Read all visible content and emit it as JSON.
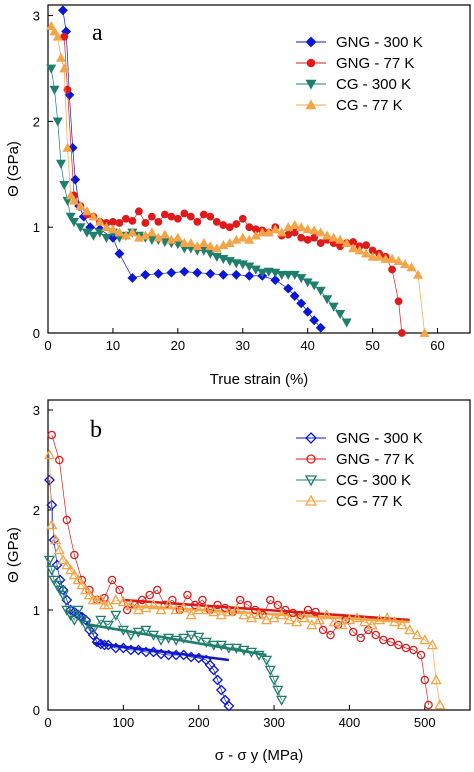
{
  "chart_data": [
    {
      "type": "scatter",
      "panel_label": "a",
      "xlabel": "True strain (%)",
      "ylabel": "Θ (GPa)",
      "xlim": [
        0,
        65
      ],
      "ylim": [
        0,
        3.1
      ],
      "xticks": [
        "0",
        "10",
        "20",
        "30",
        "40",
        "50",
        "60"
      ],
      "yticks": [
        "0",
        "1",
        "2",
        "3"
      ],
      "legend_position": "top-right",
      "series": [
        {
          "name": "GNG - 300 K",
          "color": "#0a16d8",
          "marker": "diamond",
          "filled": true,
          "x": [
            2.3,
            2.8,
            3.3,
            3.8,
            4.2,
            4.8,
            5.5,
            6.5,
            8,
            10,
            11,
            13,
            15,
            17,
            19,
            21,
            23,
            25,
            27,
            29,
            31,
            33,
            35,
            37,
            38,
            39,
            40,
            41,
            42
          ],
          "y": [
            3.05,
            2.85,
            2.25,
            1.75,
            1.45,
            1.2,
            1.1,
            1.0,
            0.98,
            0.9,
            0.75,
            0.52,
            0.55,
            0.56,
            0.57,
            0.58,
            0.57,
            0.56,
            0.55,
            0.55,
            0.54,
            0.54,
            0.5,
            0.42,
            0.35,
            0.28,
            0.2,
            0.12,
            0.05
          ]
        },
        {
          "name": "GNG - 77 K",
          "color": "#e01a1a",
          "marker": "circle",
          "filled": true,
          "x": [
            2.5,
            3,
            4,
            5,
            6,
            7,
            8,
            9,
            10,
            11,
            12,
            13,
            14,
            15,
            16,
            17,
            18,
            19,
            20,
            21,
            22,
            23,
            24,
            25,
            26,
            27,
            28,
            29,
            30,
            31,
            32,
            33,
            34,
            35,
            36,
            37,
            38,
            39,
            40,
            41,
            42,
            43,
            44,
            45,
            46,
            47,
            48,
            49,
            50,
            51,
            52,
            53,
            54,
            54.5
          ],
          "y": [
            2.8,
            2.3,
            1.3,
            1.2,
            1.12,
            1.1,
            1.05,
            1.04,
            1.05,
            1.04,
            1.08,
            1.06,
            1.15,
            1.04,
            1.1,
            1.05,
            1.12,
            1.1,
            1.08,
            1.13,
            1.1,
            1.05,
            1.12,
            1.1,
            1.05,
            1.02,
            1.0,
            1.03,
            1.08,
            1.0,
            0.98,
            0.97,
            0.95,
            1.0,
            0.92,
            0.93,
            0.95,
            0.9,
            0.88,
            0.9,
            0.85,
            0.88,
            0.85,
            0.82,
            0.85,
            0.86,
            0.82,
            0.83,
            0.78,
            0.75,
            0.72,
            0.6,
            0.3,
            0.0
          ]
        },
        {
          "name": "CG - 300 K",
          "color": "#1f7f6c",
          "marker": "triangle-down",
          "filled": true,
          "x": [
            0.5,
            1,
            1.5,
            2,
            2.5,
            3,
            3.5,
            4,
            5,
            6,
            7,
            8,
            9,
            10,
            11,
            12,
            13,
            14,
            15,
            16,
            17,
            18,
            19,
            20,
            21,
            22,
            23,
            24,
            25,
            26,
            27,
            28,
            29,
            30,
            31,
            32,
            33,
            34,
            35,
            36,
            37,
            38,
            39,
            40,
            41,
            42,
            43,
            44,
            45,
            46
          ],
          "y": [
            2.5,
            2.3,
            2.0,
            1.6,
            1.4,
            1.25,
            1.1,
            1.05,
            1.0,
            0.95,
            0.92,
            0.95,
            0.9,
            0.95,
            0.9,
            0.92,
            0.95,
            0.92,
            0.9,
            0.88,
            0.88,
            0.86,
            0.85,
            0.84,
            0.8,
            0.8,
            0.78,
            0.78,
            0.75,
            0.72,
            0.7,
            0.68,
            0.66,
            0.65,
            0.63,
            0.6,
            0.57,
            0.58,
            0.57,
            0.55,
            0.55,
            0.55,
            0.52,
            0.48,
            0.45,
            0.4,
            0.32,
            0.25,
            0.18,
            0.1
          ]
        },
        {
          "name": "CG - 77 K",
          "color": "#f5a448",
          "marker": "triangle-up",
          "filled": true,
          "x": [
            0.5,
            1,
            1.5,
            2,
            2.5,
            3,
            3.5,
            4,
            5,
            6,
            7,
            8,
            9,
            10,
            11,
            12,
            13,
            14,
            15,
            16,
            17,
            18,
            19,
            20,
            21,
            22,
            23,
            24,
            25,
            26,
            27,
            28,
            29,
            30,
            31,
            32,
            33,
            34,
            35,
            36,
            37,
            38,
            39,
            40,
            41,
            42,
            43,
            44,
            45,
            46,
            47,
            48,
            49,
            50,
            51,
            52,
            53,
            54,
            55,
            56,
            57,
            58
          ],
          "y": [
            2.9,
            2.85,
            2.8,
            2.6,
            2.5,
            1.75,
            1.3,
            1.25,
            1.2,
            1.15,
            1.1,
            1.05,
            1.0,
            0.98,
            0.95,
            0.92,
            0.95,
            0.9,
            0.92,
            0.95,
            0.9,
            0.93,
            0.88,
            0.9,
            0.85,
            0.85,
            0.82,
            0.85,
            0.82,
            0.8,
            0.83,
            0.85,
            0.88,
            0.9,
            0.88,
            0.92,
            0.95,
            0.95,
            0.98,
            0.95,
            1.0,
            1.02,
            1.0,
            0.98,
            0.97,
            0.95,
            0.92,
            0.9,
            0.88,
            0.85,
            0.8,
            0.78,
            0.75,
            0.72,
            0.72,
            0.7,
            0.7,
            0.68,
            0.65,
            0.62,
            0.55,
            0.0
          ]
        }
      ]
    },
    {
      "type": "scatter",
      "panel_label": "b",
      "xlabel": "σ - σ y (MPa)",
      "ylabel": "Θ (GPa)",
      "xlim": [
        0,
        560
      ],
      "ylim": [
        0,
        3.1
      ],
      "xticks": [
        "0",
        "100",
        "200",
        "300",
        "400",
        "500"
      ],
      "yticks": [
        "0",
        "1",
        "2",
        "3"
      ],
      "legend_position": "top-right",
      "series": [
        {
          "name": "GNG - 300 K",
          "color": "#0a16d8",
          "marker": "diamond",
          "filled": false,
          "x": [
            2,
            5,
            8,
            12,
            16,
            20,
            25,
            30,
            35,
            40,
            45,
            50,
            55,
            60,
            65,
            70,
            75,
            80,
            90,
            100,
            110,
            120,
            130,
            140,
            150,
            160,
            170,
            180,
            190,
            200,
            210,
            215,
            220,
            225,
            230,
            235,
            240
          ],
          "y": [
            2.3,
            2.05,
            1.7,
            1.45,
            1.3,
            1.2,
            1.1,
            1.0,
            0.98,
            0.95,
            0.93,
            0.9,
            0.8,
            0.75,
            0.68,
            0.66,
            0.65,
            0.65,
            0.62,
            0.62,
            0.6,
            0.6,
            0.58,
            0.58,
            0.56,
            0.55,
            0.55,
            0.55,
            0.53,
            0.52,
            0.5,
            0.45,
            0.4,
            0.3,
            0.2,
            0.1,
            0.04
          ]
        },
        {
          "name": "GNG - 77 K",
          "color": "#e01a1a",
          "marker": "circle",
          "filled": false,
          "x": [
            5,
            15,
            25,
            35,
            45,
            55,
            65,
            75,
            85,
            95,
            105,
            115,
            125,
            135,
            145,
            155,
            165,
            175,
            185,
            195,
            205,
            215,
            225,
            235,
            245,
            255,
            265,
            275,
            285,
            295,
            305,
            315,
            325,
            335,
            345,
            355,
            365,
            375,
            385,
            395,
            405,
            415,
            425,
            435,
            445,
            455,
            465,
            475,
            485,
            495,
            500,
            505
          ],
          "y": [
            2.75,
            2.5,
            1.9,
            1.55,
            1.3,
            1.2,
            1.1,
            1.12,
            1.3,
            1.2,
            1.0,
            1.05,
            1.1,
            1.15,
            1.2,
            1.05,
            1.1,
            1.0,
            1.15,
            1.05,
            1.1,
            1.0,
            1.05,
            1.02,
            0.98,
            1.1,
            1.05,
            1.0,
            0.95,
            1.1,
            1.05,
            1.0,
            0.97,
            0.95,
            1.0,
            0.98,
            0.8,
            0.75,
            0.85,
            0.9,
            0.78,
            0.72,
            0.8,
            0.75,
            0.7,
            0.68,
            0.65,
            0.62,
            0.6,
            0.55,
            0.3,
            0.05
          ]
        },
        {
          "name": "CG - 300 K",
          "color": "#1f7f6c",
          "marker": "triangle-down",
          "filled": false,
          "x": [
            2,
            5,
            8,
            12,
            16,
            20,
            25,
            30,
            35,
            40,
            45,
            50,
            60,
            70,
            80,
            90,
            100,
            110,
            120,
            130,
            140,
            150,
            160,
            170,
            180,
            190,
            200,
            210,
            220,
            230,
            240,
            250,
            260,
            270,
            280,
            290,
            295,
            300,
            305,
            310
          ],
          "y": [
            1.5,
            1.4,
            1.3,
            1.25,
            1.2,
            1.15,
            1.0,
            0.95,
            0.9,
            1.0,
            0.9,
            0.85,
            0.8,
            0.9,
            0.85,
            0.95,
            0.8,
            0.75,
            0.78,
            0.8,
            0.75,
            0.7,
            0.72,
            0.7,
            0.72,
            0.75,
            0.73,
            0.68,
            0.65,
            0.65,
            0.62,
            0.62,
            0.6,
            0.58,
            0.55,
            0.5,
            0.4,
            0.3,
            0.2,
            0.1
          ]
        },
        {
          "name": "CG - 77 K",
          "color": "#f5a448",
          "marker": "triangle-up",
          "filled": false,
          "x": [
            2,
            5,
            10,
            15,
            20,
            25,
            30,
            35,
            40,
            45,
            50,
            55,
            60,
            65,
            70,
            75,
            80,
            90,
            100,
            110,
            120,
            130,
            140,
            150,
            160,
            170,
            180,
            190,
            200,
            210,
            220,
            230,
            240,
            250,
            260,
            270,
            280,
            290,
            300,
            310,
            320,
            330,
            340,
            350,
            360,
            370,
            380,
            390,
            400,
            410,
            420,
            430,
            440,
            450,
            460,
            470,
            480,
            490,
            500,
            510,
            515,
            520
          ],
          "y": [
            2.55,
            1.85,
            1.7,
            1.6,
            1.5,
            1.45,
            1.4,
            1.35,
            1.3,
            1.25,
            1.2,
            1.15,
            1.1,
            1.1,
            1.1,
            1.05,
            1.05,
            1.1,
            1.08,
            1.05,
            1.0,
            1.02,
            1.05,
            1.0,
            1.05,
            1.0,
            1.02,
            0.95,
            1.0,
            1.0,
            0.98,
            0.95,
            0.98,
            1.0,
            0.95,
            0.92,
            0.95,
            0.9,
            0.92,
            0.95,
            0.9,
            0.88,
            0.92,
            0.85,
            0.9,
            0.95,
            0.88,
            0.85,
            0.9,
            0.92,
            0.88,
            0.85,
            0.9,
            0.92,
            0.88,
            0.85,
            0.8,
            0.75,
            0.7,
            0.65,
            0.3,
            0.05
          ]
        }
      ],
      "fit_lines": [
        {
          "color": "#1818b8",
          "x": [
            60,
            240
          ],
          "y": [
            0.67,
            0.5
          ]
        },
        {
          "color": "#1f7f6c",
          "x": [
            50,
            290
          ],
          "y": [
            0.86,
            0.55
          ]
        },
        {
          "color": "#d81a1a",
          "x": [
            100,
            480
          ],
          "y": [
            1.1,
            0.9
          ]
        },
        {
          "color": "#f5a448",
          "x": [
            110,
            480
          ],
          "y": [
            1.04,
            0.88
          ]
        }
      ]
    }
  ]
}
